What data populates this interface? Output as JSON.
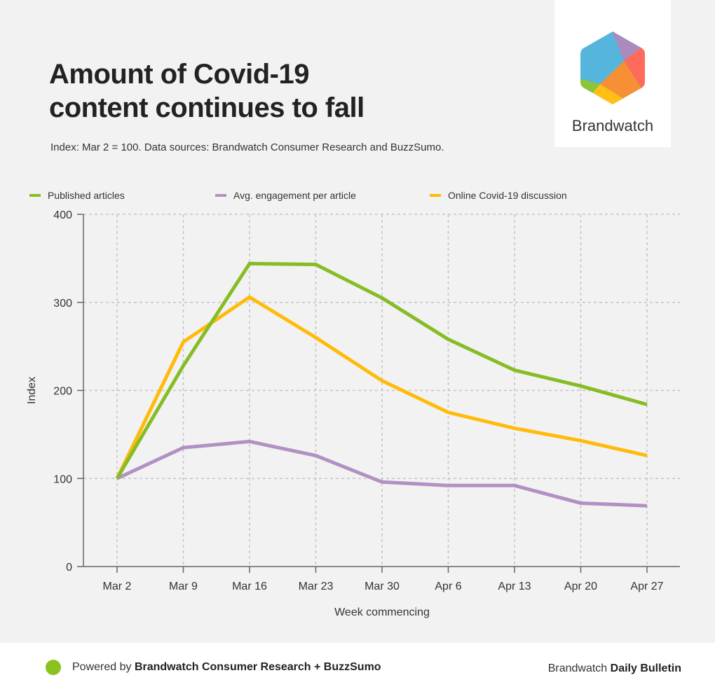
{
  "header": {
    "title_line1": "Amount of Covid-19",
    "title_line2": "content continues to fall",
    "subtitle": "Index: Mar 2 = 100. Data sources: Brandwatch Consumer Research and BuzzSumo."
  },
  "logo": {
    "text": "Brandwatch"
  },
  "footer": {
    "powered_prefix": "Powered by ",
    "powered_bold": "Brandwatch Consumer Research + BuzzSumo",
    "right_prefix": "Brandwatch ",
    "right_bold": "Daily Bulletin",
    "dot_color": "#8cc21f"
  },
  "chart_data": {
    "type": "line",
    "title": "Amount of Covid-19 content continues to fall",
    "xlabel": "Week commencing",
    "ylabel": "Index",
    "ylim": [
      0,
      400
    ],
    "yticks": [
      0,
      100,
      200,
      300,
      400
    ],
    "grid": true,
    "legend_position": "top",
    "categories": [
      "Mar 2",
      "Mar 9",
      "Mar 16",
      "Mar 23",
      "Mar 30",
      "Apr 6",
      "Apr 13",
      "Apr 20",
      "Apr 27"
    ],
    "series": [
      {
        "name": "Published articles",
        "color": "#86bc25",
        "values": [
          100,
          228,
          344,
          343,
          305,
          258,
          223,
          205,
          184
        ]
      },
      {
        "name": "Avg. engagement per article",
        "color": "#b191c4",
        "values": [
          100,
          135,
          142,
          126,
          96,
          92,
          92,
          72,
          69
        ]
      },
      {
        "name": "Online Covid-19 discussion",
        "color": "#ffbb0a",
        "values": [
          100,
          255,
          306,
          260,
          211,
          175,
          157,
          143,
          126
        ]
      }
    ]
  }
}
